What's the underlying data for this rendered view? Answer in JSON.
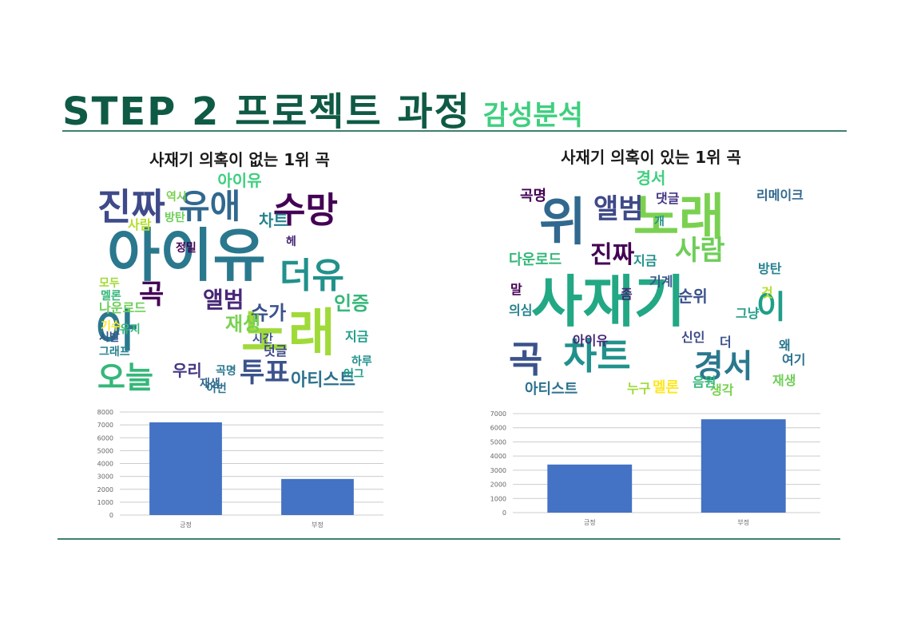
{
  "slide": {
    "title_main": "STEP 2 프로젝트 과정",
    "title_sub": "감성분석"
  },
  "left": {
    "heading": "사재기 의혹이 없는 1위 곡",
    "artist": "아이유",
    "cloud_words": [
      {
        "text": "아이유",
        "color": "#2a788e"
      },
      {
        "text": "노래",
        "color": "#a0da39"
      },
      {
        "text": "진짜",
        "color": "#3e4a89"
      },
      {
        "text": "유애",
        "color": "#31688e"
      },
      {
        "text": "수망",
        "color": "#440154"
      },
      {
        "text": "오늘",
        "color": "#35b779"
      },
      {
        "text": "아",
        "color": "#2a788e"
      },
      {
        "text": "투표",
        "color": "#3b528b"
      },
      {
        "text": "더유",
        "color": "#21918c"
      },
      {
        "text": "앨범",
        "color": "#482878"
      },
      {
        "text": "곡",
        "color": "#440154"
      },
      {
        "text": "인증",
        "color": "#35b779"
      },
      {
        "text": "아티스트",
        "color": "#2c728e"
      },
      {
        "text": "슈가",
        "color": "#3b528b"
      },
      {
        "text": "차트",
        "color": "#26828e"
      },
      {
        "text": "우리",
        "color": "#443983"
      },
      {
        "text": "재생",
        "color": "#7ad151"
      },
      {
        "text": "나운로드",
        "color": "#6ece58"
      },
      {
        "text": "사람",
        "color": "#b5de2b"
      },
      {
        "text": "지금",
        "color": "#1f9e89"
      },
      {
        "text": "덧글",
        "color": "#3e4a89"
      },
      {
        "text": "곡명",
        "color": "#2a788e"
      },
      {
        "text": "정밀",
        "color": "#440154"
      },
      {
        "text": "시발",
        "color": "#38588c"
      },
      {
        "text": "그래프",
        "color": "#26828e"
      },
      {
        "text": "유지",
        "color": "#35b779"
      },
      {
        "text": "모두",
        "color": "#a0da39"
      },
      {
        "text": "방탄",
        "color": "#6ece58"
      },
      {
        "text": "역시",
        "color": "#7ad151"
      },
      {
        "text": "헤",
        "color": "#482878"
      },
      {
        "text": "시간",
        "color": "#3b528b"
      },
      {
        "text": "이번",
        "color": "#2c728e"
      },
      {
        "text": "하루",
        "color": "#21918c"
      },
      {
        "text": "어그",
        "color": "#1f9e89"
      },
      {
        "text": "멜론",
        "color": "#35b779"
      },
      {
        "text": "기수",
        "color": "#fde725"
      },
      {
        "text": "재생",
        "color": "#31688e"
      }
    ]
  },
  "right": {
    "heading": "사재기 의혹이 있는 1위 곡",
    "artist": "경서",
    "cloud_words": [
      {
        "text": "사재기",
        "color": "#22a884"
      },
      {
        "text": "노래",
        "color": "#7ad151"
      },
      {
        "text": "위",
        "color": "#31688e"
      },
      {
        "text": "곡",
        "color": "#3b528b"
      },
      {
        "text": "차트",
        "color": "#21918c"
      },
      {
        "text": "경서",
        "color": "#2a788e"
      },
      {
        "text": "앨범",
        "color": "#3e4a89"
      },
      {
        "text": "사람",
        "color": "#6ece58"
      },
      {
        "text": "진짜",
        "color": "#440154"
      },
      {
        "text": "이",
        "color": "#1f9e89"
      },
      {
        "text": "다운로드",
        "color": "#35b779"
      },
      {
        "text": "아이유",
        "color": "#482878"
      },
      {
        "text": "아티스트",
        "color": "#2c728e"
      },
      {
        "text": "재생",
        "color": "#6ece58"
      },
      {
        "text": "멜론",
        "color": "#fde725"
      },
      {
        "text": "순위",
        "color": "#3b528b"
      },
      {
        "text": "생각",
        "color": "#7ad151"
      },
      {
        "text": "방탄",
        "color": "#26828e"
      },
      {
        "text": "왜",
        "color": "#2a788e"
      },
      {
        "text": "누구",
        "color": "#a0da39"
      },
      {
        "text": "곡명",
        "color": "#440154"
      },
      {
        "text": "리메이크",
        "color": "#31688e"
      },
      {
        "text": "댓글",
        "color": "#443983"
      },
      {
        "text": "지금",
        "color": "#21918c"
      },
      {
        "text": "기계",
        "color": "#38588c"
      },
      {
        "text": "그냥",
        "color": "#1f9e89"
      },
      {
        "text": "음원",
        "color": "#35b779"
      },
      {
        "text": "신인",
        "color": "#3e4a89"
      },
      {
        "text": "말",
        "color": "#440154"
      },
      {
        "text": "좀",
        "color": "#482878"
      },
      {
        "text": "의심",
        "color": "#26828e"
      },
      {
        "text": "것",
        "color": "#b5de2b"
      },
      {
        "text": "더",
        "color": "#3b528b"
      },
      {
        "text": "여기",
        "color": "#2c728e"
      },
      {
        "text": "개",
        "color": "#21918c"
      }
    ]
  },
  "charts": {
    "left": {
      "type": "bar",
      "categories": [
        "긍정",
        "부정"
      ],
      "values": [
        7200,
        2800
      ],
      "ylim": [
        0,
        8000
      ],
      "yticks": [
        "0",
        "1000",
        "2000",
        "3000",
        "4000",
        "5000",
        "6000",
        "7000",
        "8000"
      ],
      "bar_color": "#4472c4",
      "grid": true
    },
    "right": {
      "type": "bar",
      "categories": [
        "긍정",
        "부정"
      ],
      "values": [
        3400,
        6600
      ],
      "ylim": [
        0,
        7000
      ],
      "yticks": [
        "0",
        "1000",
        "2000",
        "3000",
        "4000",
        "5000",
        "6000",
        "7000"
      ],
      "bar_color": "#4472c4",
      "grid": true
    }
  }
}
